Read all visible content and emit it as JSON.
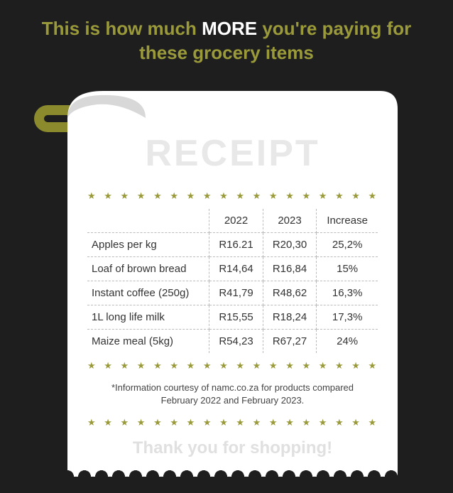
{
  "title": {
    "pre": "This is how much ",
    "emphasis": "MORE",
    "post": " you're paying for these grocery items"
  },
  "receipt": {
    "watermark": "RECEIPT",
    "star_row": "★ ★ ★ ★ ★ ★ ★ ★ ★ ★ ★ ★ ★ ★ ★ ★ ★ ★ ★ ★ ★ ★ ★ ★ ★ ★",
    "columns": [
      "",
      "2022",
      "2023",
      "Increase"
    ],
    "rows": [
      [
        "Apples per kg",
        "R16.21",
        "R20,30",
        "25,2%"
      ],
      [
        "Loaf of brown bread",
        "R14,64",
        "R16,84",
        "15%"
      ],
      [
        "Instant coffee (250g)",
        "R41,79",
        "R48,62",
        "16,3%"
      ],
      [
        "1L long life milk",
        "R15,55",
        "R18,24",
        "17,3%"
      ],
      [
        "Maize meal (5kg)",
        "R54,23",
        "R67,27",
        "24%"
      ]
    ],
    "footnote": "*Information courtesy of namc.co.za for products compared February 2022 and February 2023.",
    "thanks": "Thank you for shopping!"
  },
  "colors": {
    "background": "#1e1e1e",
    "accent": "#9a9a3a",
    "holder": "#8b8b2e",
    "paper": "#ffffff",
    "watermark": "#e8e8e8",
    "text": "#333333"
  }
}
